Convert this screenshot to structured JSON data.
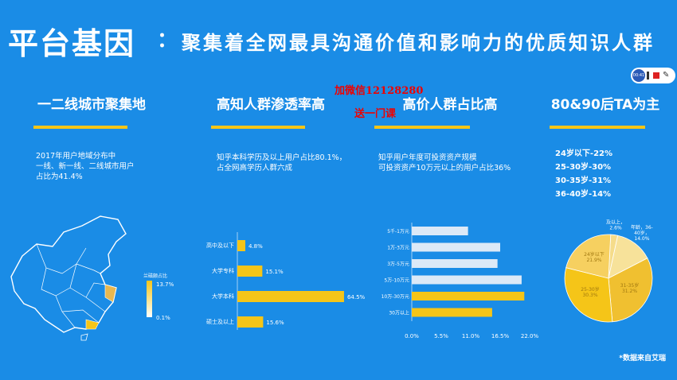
{
  "header": {
    "title": "平台基因",
    "separator": "：",
    "subtitle": "聚集着全网最具沟通价值和影响力的优质知识人群"
  },
  "watermark": {
    "line1": "加微信12128280",
    "line2": "送一门课"
  },
  "recorder": {
    "time": "00:41"
  },
  "columns": [
    {
      "heading": "一二线城市聚集地",
      "desc": [
        "2017年用户地域分布中",
        "一线、新一线、二线城市用户",
        "占比为41.4%"
      ]
    },
    {
      "heading": "高知人群渗透率高",
      "desc": [
        "知乎本科学历及以上用户占比80.1%，",
        "占全网高学历人群六成"
      ]
    },
    {
      "heading": "高价人群占比高",
      "desc": [
        "知乎用户年度可投资资产规模",
        "可投资资产10万元以上的用户占比36%"
      ]
    },
    {
      "heading": "80&90后TA为主",
      "ages": [
        "24岁以下-22%",
        "25-30岁-30%",
        "30-35岁-31%",
        "36-40岁-14%"
      ]
    }
  ],
  "map_legend": {
    "title": "兰磁颇占比",
    "max": "13.7%",
    "min": "0.1%"
  },
  "source_note": "*数据来自艾瑞",
  "colors": {
    "background": "#1a8ce6",
    "accent": "#f5c518",
    "bar_light": "#dce9f7",
    "watermark": "#e00000"
  },
  "chart_data": [
    {
      "type": "bar",
      "orientation": "horizontal",
      "categories": [
        "高中及以下",
        "大学专科",
        "大学本科",
        "硕士及以上"
      ],
      "values": [
        4.8,
        15.1,
        64.5,
        15.6
      ],
      "labels": [
        "4.8%",
        "15.1%",
        "64.5%",
        "15.6%"
      ]
    },
    {
      "type": "bar",
      "orientation": "horizontal",
      "categories": [
        "5千-1万元",
        "1万-3万元",
        "3万-5万元",
        "5万-10万元",
        "10万-30万元",
        "30万以上"
      ],
      "values": [
        10.5,
        16.5,
        16.0,
        20.5,
        21.0,
        15.0
      ],
      "highlight": [
        false,
        false,
        false,
        false,
        true,
        true
      ],
      "xticks": [
        "0.0%",
        "5.5%",
        "11.0%",
        "16.5%",
        "22.0%"
      ],
      "xlim": [
        0,
        22
      ]
    },
    {
      "type": "pie",
      "categories": [
        "年龄，41岁及以上",
        "年龄，36-40岁",
        "30-35岁",
        "25-30岁",
        "24岁以下"
      ],
      "values": [
        2.6,
        14.0,
        31.2,
        30.3,
        21.9
      ],
      "labels": [
        "年龄，41岁\n及以上，\n2.6%",
        "年龄，36-\n40岁，\n14.0%",
        "31-35岁\n31.2%",
        "25-30岁\n30.3%",
        "24岁以下\n21.9%"
      ]
    }
  ]
}
